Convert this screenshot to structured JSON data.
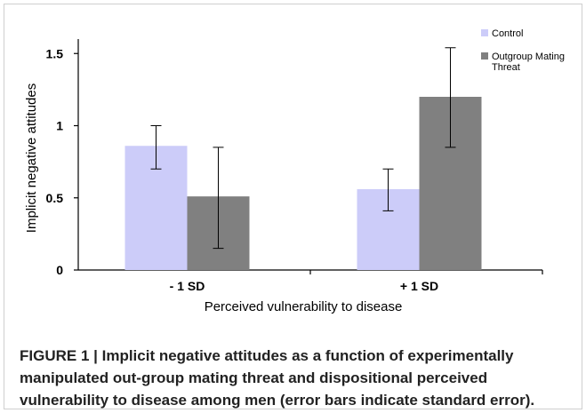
{
  "chart_data": {
    "type": "bar",
    "categories": [
      "- 1 SD",
      "+ 1 SD"
    ],
    "series": [
      {
        "name": "Control",
        "color": "#ccccf9",
        "values": [
          0.86,
          0.56
        ],
        "error_low": [
          0.7,
          0.41
        ],
        "error_high": [
          1.0,
          0.7
        ]
      },
      {
        "name": "Outgroup Mating Threat",
        "color": "#808080",
        "values": [
          0.51,
          1.2
        ],
        "error_low": [
          0.15,
          0.85
        ],
        "error_high": [
          0.85,
          1.54
        ]
      }
    ],
    "yticks": [
      "0",
      "0.5",
      "1",
      "1.5"
    ],
    "ylim": [
      0,
      1.6
    ],
    "xlabel": "Perceived vulnerability to disease",
    "ylabel": "Implicit negative attitudes",
    "grid": false,
    "legend_position": "top-right"
  },
  "caption": "FIGURE 1 | Implicit negative attitudes as a function of experimentally manipulated out-group mating threat and dispositional perceived vulnerability to disease among men (error bars indicate standard error)."
}
